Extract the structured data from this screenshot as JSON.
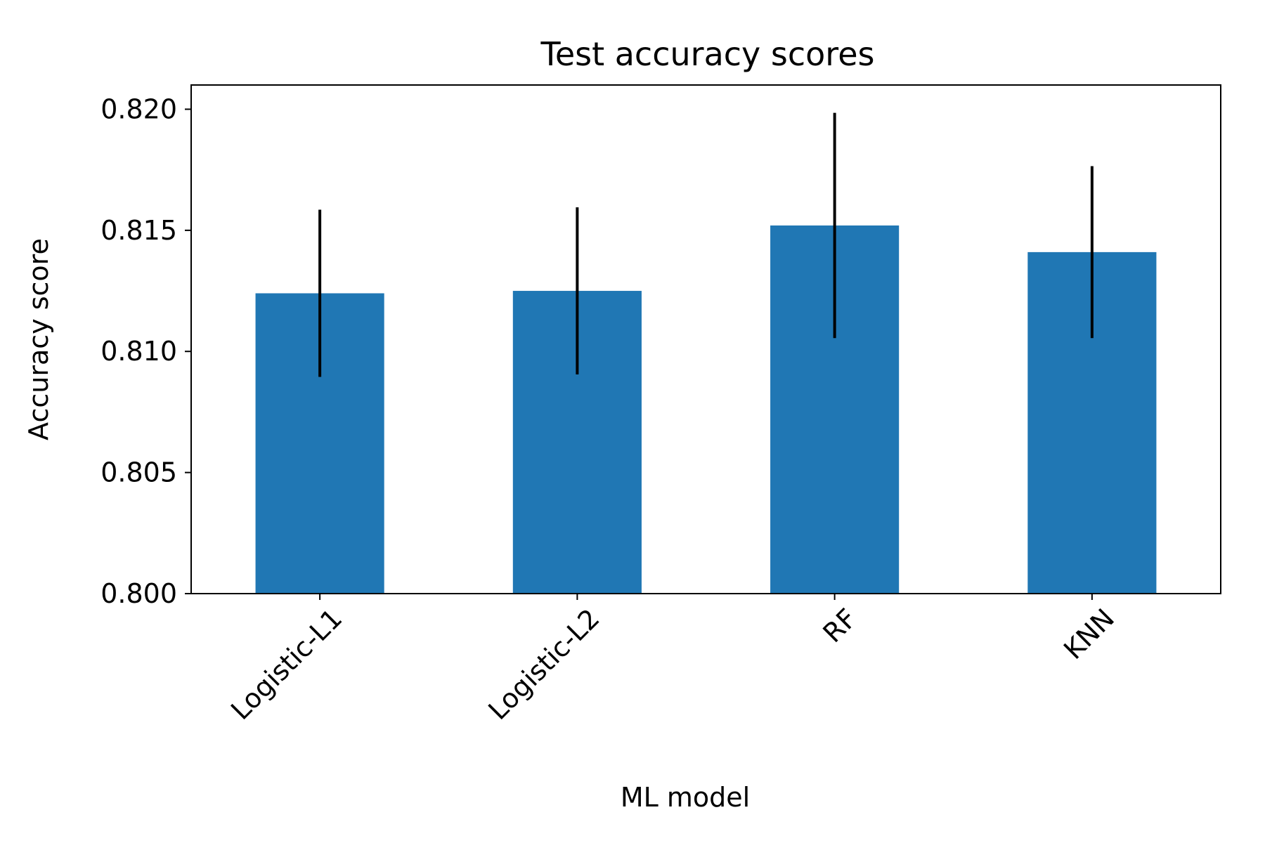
{
  "colors": {
    "bar": "#2077b4",
    "error_bar": "#000000",
    "axis": "#000000",
    "background": "#ffffff"
  },
  "chart_data": {
    "type": "bar",
    "title": "Test accuracy scores",
    "xlabel": "ML model",
    "ylabel": "Accuracy score",
    "categories": [
      "Logistic-L1",
      "Logistic-L2",
      "RF",
      "KNN"
    ],
    "values": [
      0.8124,
      0.8125,
      0.8152,
      0.8141
    ],
    "error": [
      0.00345,
      0.00345,
      0.00465,
      0.00355
    ],
    "ylim": [
      0.8,
      0.821
    ],
    "yticks": [
      0.8,
      0.805,
      0.81,
      0.815,
      0.82
    ],
    "ytick_labels": [
      "0.800",
      "0.805",
      "0.810",
      "0.815",
      "0.820"
    ],
    "xtick_rotation_deg": 45,
    "grid": false,
    "legend": "none"
  }
}
